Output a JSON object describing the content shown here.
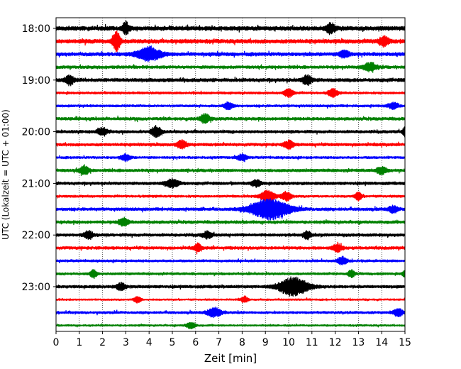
{
  "chart_data": {
    "type": "line",
    "subtype": "helicorder-seismogram",
    "title": "",
    "xlabel": "Zeit  [min]",
    "ylabel": "UTC (Lokalzeit = UTC + 01:00)",
    "xlim": [
      0,
      15
    ],
    "x_ticks": [
      "0",
      "1",
      "2",
      "3",
      "4",
      "5",
      "6",
      "7",
      "8",
      "9",
      "10",
      "11",
      "12",
      "13",
      "14",
      "15"
    ],
    "y_tick_labels": [
      "18:00",
      "19:00",
      "20:00",
      "21:00",
      "22:00",
      "23:00"
    ],
    "grid": "vertical dotted lines at each minute",
    "legend": "none",
    "row_interval_minutes": 15,
    "trace_colors": [
      "#000000",
      "#ff0000",
      "#0000ff",
      "#008000"
    ],
    "traces": [
      {
        "start": "18:00",
        "color": "#000000",
        "amplitude": 0.4,
        "bursts": [
          {
            "x": 3.0,
            "amp": 0.9,
            "width": 0.15
          },
          {
            "x": 11.8,
            "amp": 0.7,
            "width": 0.2
          }
        ]
      },
      {
        "start": "18:15",
        "color": "#ff0000",
        "amplitude": 0.4,
        "bursts": [
          {
            "x": 2.6,
            "amp": 1.5,
            "width": 0.15
          },
          {
            "x": 14.1,
            "amp": 0.7,
            "width": 0.2
          }
        ]
      },
      {
        "start": "18:30",
        "color": "#0000ff",
        "amplitude": 0.35,
        "bursts": [
          {
            "x": 4.0,
            "amp": 1.0,
            "width": 0.5
          },
          {
            "x": 12.4,
            "amp": 0.6,
            "width": 0.2
          }
        ]
      },
      {
        "start": "18:45",
        "color": "#008000",
        "amplitude": 0.3,
        "bursts": [
          {
            "x": 13.5,
            "amp": 0.6,
            "width": 0.3
          }
        ]
      },
      {
        "start": "19:00",
        "color": "#000000",
        "amplitude": 0.35,
        "bursts": [
          {
            "x": 0.6,
            "amp": 0.7,
            "width": 0.2
          },
          {
            "x": 10.8,
            "amp": 0.7,
            "width": 0.2
          }
        ]
      },
      {
        "start": "19:15",
        "color": "#ff0000",
        "amplitude": 0.25,
        "bursts": [
          {
            "x": 10.0,
            "amp": 0.6,
            "width": 0.2
          },
          {
            "x": 11.9,
            "amp": 0.6,
            "width": 0.2
          }
        ]
      },
      {
        "start": "19:30",
        "color": "#0000ff",
        "amplitude": 0.25,
        "bursts": [
          {
            "x": 7.4,
            "amp": 0.5,
            "width": 0.2
          },
          {
            "x": 14.5,
            "amp": 0.5,
            "width": 0.2
          }
        ]
      },
      {
        "start": "19:45",
        "color": "#008000",
        "amplitude": 0.3,
        "bursts": [
          {
            "x": 6.4,
            "amp": 0.7,
            "width": 0.2
          }
        ]
      },
      {
        "start": "20:00",
        "color": "#000000",
        "amplitude": 0.3,
        "bursts": [
          {
            "x": 2.0,
            "amp": 0.6,
            "width": 0.2
          },
          {
            "x": 4.3,
            "amp": 0.8,
            "width": 0.2
          },
          {
            "x": 15.0,
            "amp": 0.7,
            "width": 0.1
          }
        ]
      },
      {
        "start": "20:15",
        "color": "#ff0000",
        "amplitude": 0.3,
        "bursts": [
          {
            "x": 5.4,
            "amp": 0.6,
            "width": 0.2
          },
          {
            "x": 10.0,
            "amp": 0.6,
            "width": 0.2
          }
        ]
      },
      {
        "start": "20:30",
        "color": "#0000ff",
        "amplitude": 0.25,
        "bursts": [
          {
            "x": 3.0,
            "amp": 0.5,
            "width": 0.2
          },
          {
            "x": 8.0,
            "amp": 0.5,
            "width": 0.2
          }
        ]
      },
      {
        "start": "20:45",
        "color": "#008000",
        "amplitude": 0.3,
        "bursts": [
          {
            "x": 1.2,
            "amp": 0.7,
            "width": 0.2
          },
          {
            "x": 14.0,
            "amp": 0.6,
            "width": 0.2
          }
        ]
      },
      {
        "start": "21:00",
        "color": "#000000",
        "amplitude": 0.3,
        "bursts": [
          {
            "x": 5.0,
            "amp": 0.6,
            "width": 0.3
          },
          {
            "x": 8.6,
            "amp": 0.5,
            "width": 0.2
          }
        ]
      },
      {
        "start": "21:15",
        "color": "#ff0000",
        "amplitude": 0.25,
        "bursts": [
          {
            "x": 9.1,
            "amp": 0.9,
            "width": 0.3
          },
          {
            "x": 9.9,
            "amp": 0.7,
            "width": 0.2
          },
          {
            "x": 13.0,
            "amp": 0.6,
            "width": 0.15
          }
        ]
      },
      {
        "start": "21:30",
        "color": "#0000ff",
        "amplitude": 0.3,
        "bursts": [
          {
            "x": 9.2,
            "amp": 1.6,
            "width": 0.8
          },
          {
            "x": 14.5,
            "amp": 0.5,
            "width": 0.2
          }
        ]
      },
      {
        "start": "21:45",
        "color": "#008000",
        "amplitude": 0.3,
        "bursts": [
          {
            "x": 2.9,
            "amp": 0.6,
            "width": 0.2
          }
        ]
      },
      {
        "start": "22:00",
        "color": "#000000",
        "amplitude": 0.3,
        "bursts": [
          {
            "x": 1.4,
            "amp": 0.6,
            "width": 0.2
          },
          {
            "x": 6.5,
            "amp": 0.5,
            "width": 0.2
          },
          {
            "x": 10.8,
            "amp": 0.6,
            "width": 0.15
          }
        ]
      },
      {
        "start": "22:15",
        "color": "#ff0000",
        "amplitude": 0.3,
        "bursts": [
          {
            "x": 6.1,
            "amp": 0.6,
            "width": 0.15
          },
          {
            "x": 12.1,
            "amp": 0.6,
            "width": 0.2
          }
        ]
      },
      {
        "start": "22:30",
        "color": "#0000ff",
        "amplitude": 0.25,
        "bursts": [
          {
            "x": 12.3,
            "amp": 0.6,
            "width": 0.2
          }
        ]
      },
      {
        "start": "22:45",
        "color": "#008000",
        "amplitude": 0.25,
        "bursts": [
          {
            "x": 1.6,
            "amp": 0.6,
            "width": 0.15
          },
          {
            "x": 12.7,
            "amp": 0.6,
            "width": 0.15
          },
          {
            "x": 15.0,
            "amp": 0.6,
            "width": 0.1
          }
        ]
      },
      {
        "start": "23:00",
        "color": "#000000",
        "amplitude": 0.3,
        "bursts": [
          {
            "x": 10.2,
            "amp": 1.4,
            "width": 0.6
          },
          {
            "x": 2.8,
            "amp": 0.5,
            "width": 0.2
          }
        ]
      },
      {
        "start": "23:15",
        "color": "#ff0000",
        "amplitude": 0.2,
        "bursts": [
          {
            "x": 3.5,
            "amp": 0.5,
            "width": 0.15
          },
          {
            "x": 8.1,
            "amp": 0.5,
            "width": 0.15
          }
        ]
      },
      {
        "start": "23:30",
        "color": "#0000ff",
        "amplitude": 0.25,
        "bursts": [
          {
            "x": 6.8,
            "amp": 0.7,
            "width": 0.3
          },
          {
            "x": 14.7,
            "amp": 0.6,
            "width": 0.2
          }
        ]
      },
      {
        "start": "23:45",
        "color": "#008000",
        "amplitude": 0.2,
        "bursts": [
          {
            "x": 5.8,
            "amp": 0.5,
            "width": 0.2
          }
        ]
      }
    ]
  }
}
